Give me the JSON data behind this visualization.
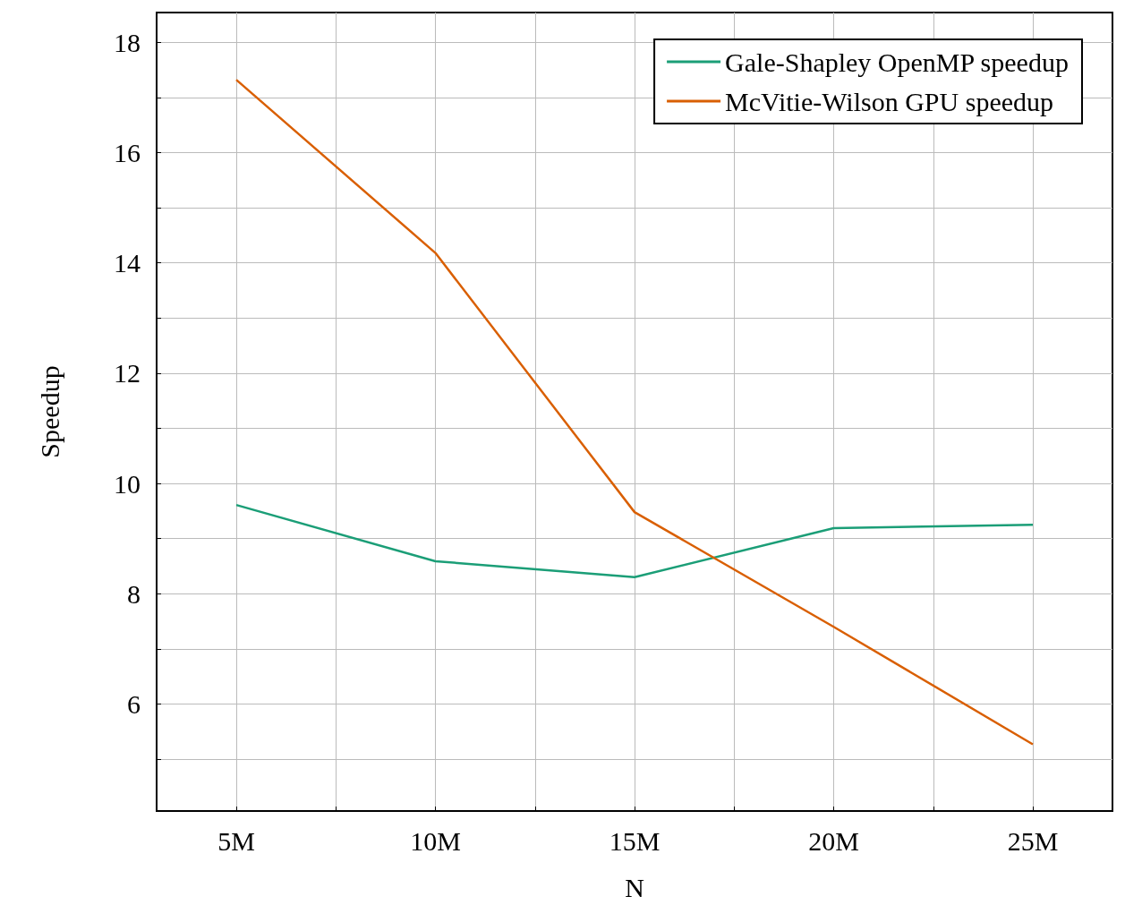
{
  "chart_data": {
    "type": "line",
    "xlabel": "N",
    "ylabel": "Speedup",
    "x": [
      5,
      10,
      15,
      20,
      25
    ],
    "series": [
      {
        "name": "Gale-Shapley OpenMP speedup",
        "color": "#1b9e77",
        "values": [
          9.61,
          8.59,
          8.3,
          9.19,
          9.25
        ]
      },
      {
        "name": "McVitie-Wilson GPU speedup",
        "color": "#d95f02",
        "values": [
          17.32,
          14.18,
          9.48,
          7.4,
          5.27
        ]
      }
    ],
    "xlim": [
      3,
      27
    ],
    "xticks": [
      {
        "value": 5,
        "label": "5M"
      },
      {
        "value": 7.5,
        "label": null
      },
      {
        "value": 10,
        "label": "10M"
      },
      {
        "value": 12.5,
        "label": null
      },
      {
        "value": 15,
        "label": "15M"
      },
      {
        "value": 17.5,
        "label": null
      },
      {
        "value": 20,
        "label": "20M"
      },
      {
        "value": 22.5,
        "label": null
      },
      {
        "value": 25,
        "label": "25M"
      }
    ],
    "ylim": [
      4.06,
      18.54
    ],
    "yticks": [
      {
        "value": 5,
        "label": null
      },
      6,
      {
        "value": 7,
        "label": null
      },
      8,
      {
        "value": 9,
        "label": null
      },
      10,
      {
        "value": 11,
        "label": null
      },
      12,
      {
        "value": 13,
        "label": null
      },
      14,
      {
        "value": 15,
        "label": null
      },
      16,
      {
        "value": 17,
        "label": null
      },
      18
    ],
    "grid": true,
    "legend": "top right",
    "marker": "none",
    "line_style": "solid"
  }
}
